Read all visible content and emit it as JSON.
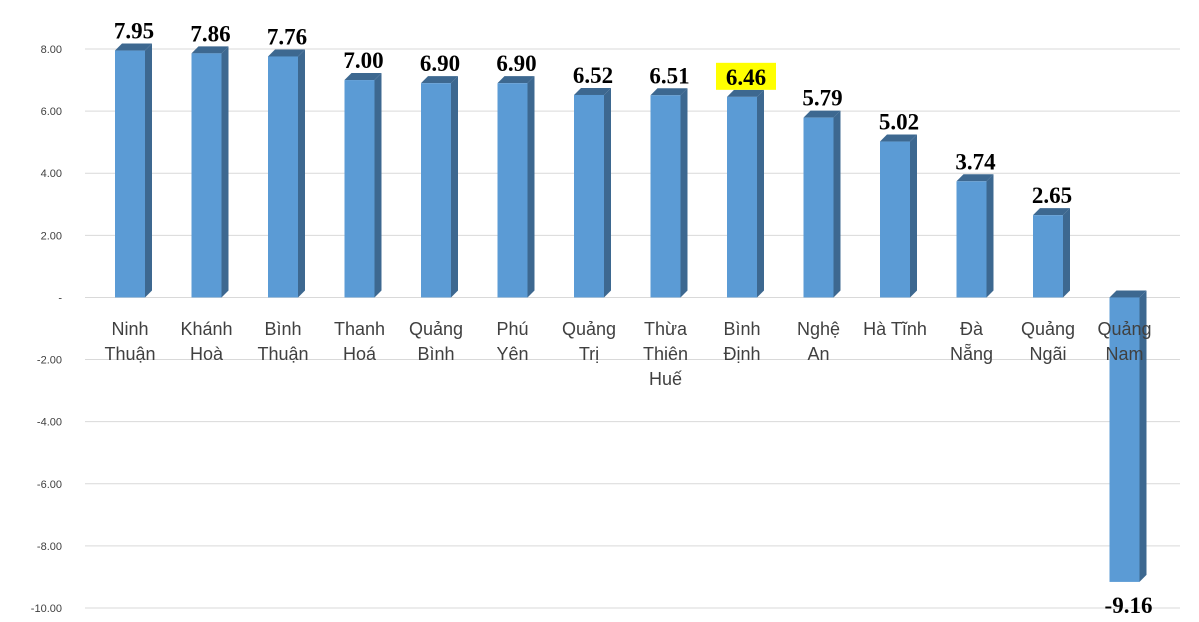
{
  "colors": {
    "bar_front": "#5b9bd5",
    "bar_side": "#3d6890",
    "bar_top": "#3d6890",
    "grid": "#d9d9d9",
    "highlight_background": "#ffff00",
    "highlight_text": "#ff0000"
  },
  "chart_data": {
    "type": "bar",
    "style": "3d-column",
    "categories": [
      [
        "Ninh",
        "Thuận"
      ],
      [
        "Khánh",
        "Hoà"
      ],
      [
        "Bình",
        "Thuận"
      ],
      [
        "Thanh",
        "Hoá"
      ],
      [
        "Quảng",
        "Bình"
      ],
      [
        "Phú",
        "Yên"
      ],
      [
        "Quảng",
        "Trị"
      ],
      [
        "Thừa",
        "Thiên",
        "Huế"
      ],
      [
        "Bình",
        "Định"
      ],
      [
        "Nghệ",
        "An"
      ],
      [
        "Hà Tĩnh"
      ],
      [
        "Đà",
        "Nẵng"
      ],
      [
        "Quảng",
        "Ngãi"
      ],
      [
        "Quảng",
        "Nam"
      ]
    ],
    "values": [
      7.95,
      7.86,
      7.76,
      7.0,
      6.9,
      6.9,
      6.52,
      6.51,
      6.46,
      5.79,
      5.02,
      3.74,
      2.65,
      -9.16
    ],
    "value_labels": [
      "7.95",
      "7.86",
      "7.76",
      "7.00",
      "6.90",
      "6.90",
      "6.52",
      "6.51",
      "6.46",
      "5.79",
      "5.02",
      "3.74",
      "2.65",
      "-9.16"
    ],
    "highlight_index": 8,
    "ylim": [
      -10,
      8
    ],
    "yticks": [
      8,
      6,
      4,
      2,
      0,
      -2,
      -4,
      -6,
      -8,
      -10
    ],
    "ytick_labels": [
      "8.00",
      "6.00",
      "4.00",
      "2.00",
      "-",
      "-2.00",
      "-4.00",
      "-6.00",
      "-8.00",
      "-10.00"
    ],
    "grid": true,
    "legend": "none",
    "title": "",
    "xlabel": "",
    "ylabel": ""
  }
}
